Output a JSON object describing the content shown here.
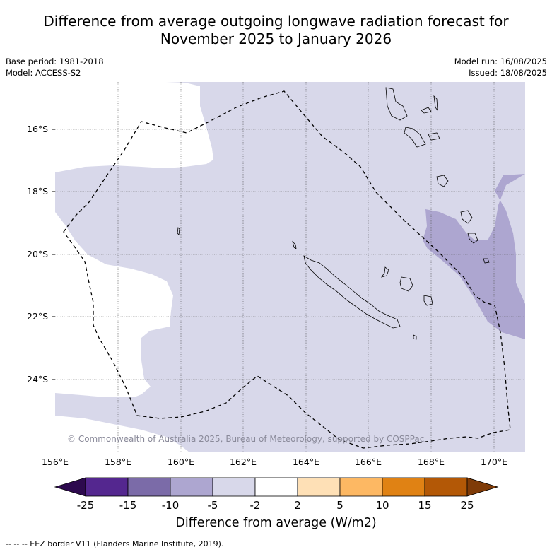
{
  "title_line1": "Difference from average outgoing longwave radiation forecast for",
  "title_line2": "November 2025 to January 2026",
  "base_period": "Base period: 1981-2018",
  "model": "Model: ACCESS-S2",
  "model_run": "Model run: 16/08/2025",
  "issued": "Issued: 18/08/2025",
  "copyright": "© Commonwealth of Australia 2025, Bureau of Meteorology, supported by COSPPac",
  "lat_labels": [
    "16°S",
    "18°S",
    "20°S",
    "22°S",
    "24°S"
  ],
  "lon_labels": [
    "156°E",
    "158°E",
    "160°E",
    "162°E",
    "164°E",
    "166°E",
    "168°E",
    "170°E"
  ],
  "colorbar": {
    "bounds": [
      "-25",
      "-15",
      "-10",
      "-5",
      "-2",
      "2",
      "5",
      "10",
      "15",
      "25"
    ],
    "colors": [
      "#2d0a4e",
      "#54278f",
      "#7b6ba8",
      "#ada6d0",
      "#d8d8ea",
      "#ffffff",
      "#fee0b6",
      "#fdb863",
      "#e08214",
      "#b35806",
      "#7f3b08"
    ],
    "title": "Difference from average (W/m2)"
  },
  "legend_note": "-- -- -- EEZ border V11 (Flanders Marine Institute, 2019).",
  "colors": {
    "light_band": "#d8d8ea",
    "medium_band": "#ada6d0",
    "neutral": "#ffffff",
    "grid": "#555555"
  }
}
